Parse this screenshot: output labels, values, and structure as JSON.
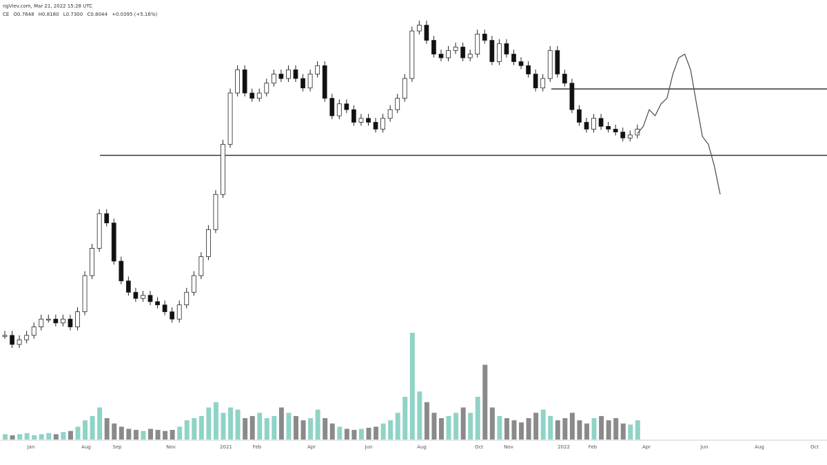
{
  "header": {
    "source_line": "ngViev.com, Mar 21, 2022 15:28 UTC",
    "ohlc": {
      "symbol_fragment": "CE",
      "open": "O0.7648",
      "high": "H0.8180",
      "low": "L0.7300",
      "close": "C0.8044",
      "change": "+0.0395 (+5.16%)"
    }
  },
  "colors": {
    "up_body": "#ffffff",
    "down_body": "#111111",
    "wick": "#222222",
    "volume_up": "#8fd3c7",
    "volume_down": "#8a8a8a",
    "level_line": "#333333",
    "projection": "#555555",
    "axis_text": "#555555"
  },
  "chart_data": {
    "type": "candlestick",
    "timeframe": "weekly",
    "x_axis_labels": [
      "Jan",
      "Aug",
      "Sep",
      "Nov",
      "2021",
      "Feb",
      "Apr",
      "Jun",
      "Aug",
      "Oct",
      "Nov",
      "2022",
      "Feb",
      "Apr",
      "Jun",
      "Aug",
      "Oct"
    ],
    "y_scale": "log",
    "ylim": [
      0.1,
      1.9
    ],
    "last_candle": {
      "open": 0.7648,
      "high": 0.818,
      "low": 0.73,
      "close": 0.8044
    },
    "price_path": [
      0.13,
      0.12,
      0.125,
      0.13,
      0.14,
      0.15,
      0.15,
      0.145,
      0.15,
      0.14,
      0.16,
      0.22,
      0.28,
      0.38,
      0.35,
      0.25,
      0.21,
      0.19,
      0.18,
      0.185,
      0.175,
      0.17,
      0.16,
      0.15,
      0.17,
      0.19,
      0.22,
      0.26,
      0.33,
      0.45,
      0.7,
      1.1,
      1.35,
      1.1,
      1.05,
      1.1,
      1.2,
      1.3,
      1.25,
      1.35,
      1.25,
      1.15,
      1.3,
      1.4,
      1.05,
      0.9,
      1.0,
      0.95,
      0.85,
      0.88,
      0.85,
      0.8,
      0.88,
      0.95,
      1.05,
      1.25,
      1.9,
      2.0,
      1.75,
      1.55,
      1.5,
      1.6,
      1.65,
      1.5,
      1.55,
      1.85,
      1.75,
      1.45,
      1.7,
      1.55,
      1.45,
      1.4,
      1.3,
      1.15,
      1.25,
      1.6,
      1.3,
      1.2,
      0.95,
      0.85,
      0.8,
      0.88,
      0.82,
      0.8,
      0.78,
      0.74,
      0.76,
      0.8
    ],
    "volume_relative": [
      0.05,
      0.04,
      0.05,
      0.06,
      0.04,
      0.05,
      0.06,
      0.05,
      0.07,
      0.08,
      0.12,
      0.18,
      0.22,
      0.3,
      0.2,
      0.15,
      0.12,
      0.1,
      0.09,
      0.08,
      0.1,
      0.09,
      0.08,
      0.09,
      0.12,
      0.18,
      0.2,
      0.22,
      0.3,
      0.35,
      0.25,
      0.3,
      0.28,
      0.2,
      0.22,
      0.25,
      0.2,
      0.22,
      0.3,
      0.25,
      0.22,
      0.18,
      0.2,
      0.28,
      0.2,
      0.15,
      0.12,
      0.1,
      0.09,
      0.1,
      0.11,
      0.12,
      0.15,
      0.18,
      0.25,
      0.4,
      1.0,
      0.45,
      0.35,
      0.25,
      0.2,
      0.22,
      0.25,
      0.3,
      0.25,
      0.4,
      0.7,
      0.3,
      0.22,
      0.2,
      0.18,
      0.16,
      0.2,
      0.25,
      0.28,
      0.22,
      0.18,
      0.2,
      0.25,
      0.18,
      0.15,
      0.2,
      0.22,
      0.18,
      0.2,
      0.15,
      0.14,
      0.18
    ],
    "horizontal_levels": [
      0.635,
      1.14
    ],
    "projection_path": [
      0.77,
      0.82,
      0.95,
      0.9,
      1.0,
      1.05,
      1.3,
      1.5,
      1.55,
      1.35,
      1.0,
      0.75,
      0.7,
      0.58,
      0.45
    ]
  }
}
